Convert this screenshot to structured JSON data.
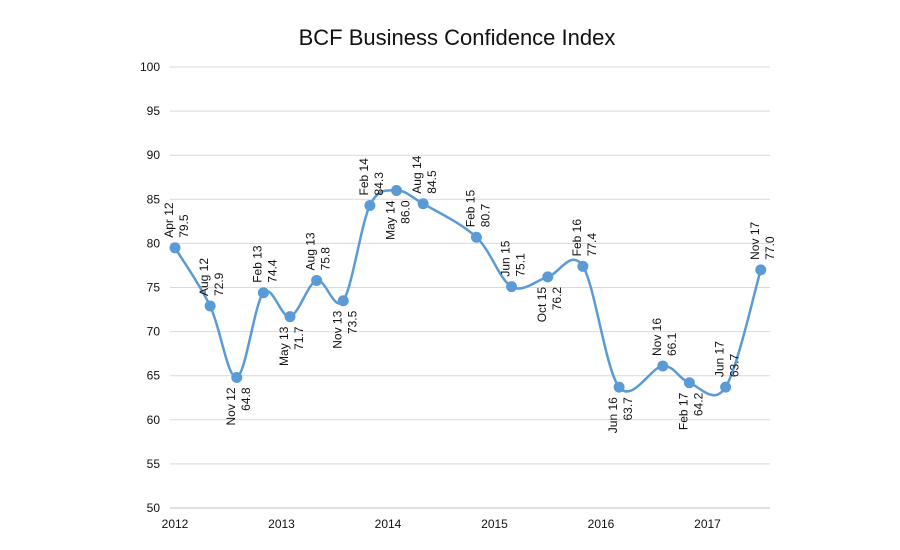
{
  "chart_data": {
    "type": "line",
    "title": "BCF Business Confidence Index",
    "xlabel": "",
    "ylabel": "",
    "ylim": [
      50,
      100
    ],
    "yticks": [
      "50",
      "55",
      "60",
      "65",
      "70",
      "75",
      "80",
      "85",
      "90",
      "95",
      "100"
    ],
    "xlim": [
      2012,
      2017.6
    ],
    "xticks": [
      "2012",
      "2013",
      "2014",
      "2015",
      "2016",
      "2017"
    ],
    "grid": true,
    "legend": "none",
    "smooth": true,
    "color": "#5b9bd5",
    "points": [
      {
        "date": "Apr 12",
        "x": 2012.0,
        "y": 79.5
      },
      {
        "date": "Aug 12",
        "x": 2012.33,
        "y": 72.9
      },
      {
        "date": "Nov 12",
        "x": 2012.58,
        "y": 64.8
      },
      {
        "date": "Feb 13",
        "x": 2012.83,
        "y": 74.4
      },
      {
        "date": "May 13",
        "x": 2013.08,
        "y": 71.7
      },
      {
        "date": "Aug 13",
        "x": 2013.33,
        "y": 75.8
      },
      {
        "date": "Nov 13",
        "x": 2013.58,
        "y": 73.5
      },
      {
        "date": "Feb 14",
        "x": 2013.83,
        "y": 84.3
      },
      {
        "date": "May 14",
        "x": 2014.08,
        "y": 86.0
      },
      {
        "date": "Aug 14",
        "x": 2014.33,
        "y": 84.5
      },
      {
        "date": "Feb 15",
        "x": 2014.83,
        "y": 80.7
      },
      {
        "date": "Jun 15",
        "x": 2015.16,
        "y": 75.1
      },
      {
        "date": "Oct 15",
        "x": 2015.5,
        "y": 76.2
      },
      {
        "date": "Feb 16",
        "x": 2015.83,
        "y": 77.4
      },
      {
        "date": "Jun 16",
        "x": 2016.17,
        "y": 63.7
      },
      {
        "date": "Nov 16",
        "x": 2016.58,
        "y": 66.1
      },
      {
        "date": "Feb 17",
        "x": 2016.83,
        "y": 64.2
      },
      {
        "date": "Jun 17",
        "x": 2017.17,
        "y": 63.7
      },
      {
        "date": "Nov 17",
        "x": 2017.5,
        "y": 77.0
      }
    ]
  }
}
